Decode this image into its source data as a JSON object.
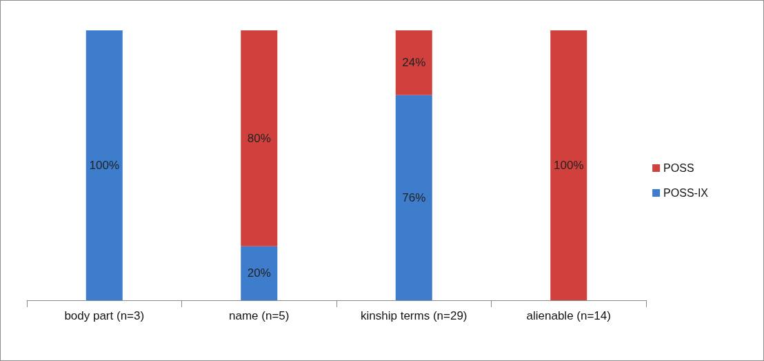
{
  "chart_data": {
    "type": "bar",
    "stacked": true,
    "categories": [
      "body part (n=3)",
      "name (n=5)",
      "kinship terms (n=29)",
      "alienable (n=14)"
    ],
    "series": [
      {
        "name": "POSS-IX",
        "color": "#3d7dcc",
        "values": [
          100,
          20,
          76,
          null
        ],
        "value_labels": [
          "100%",
          "20%",
          "76%",
          null
        ]
      },
      {
        "name": "POSS",
        "color": "#d0413e",
        "values": [
          null,
          80,
          24,
          100
        ],
        "value_labels": [
          null,
          "80%",
          "24%",
          "100%"
        ]
      }
    ],
    "tick_labels": "x",
    "grid": false,
    "legend": "right"
  }
}
